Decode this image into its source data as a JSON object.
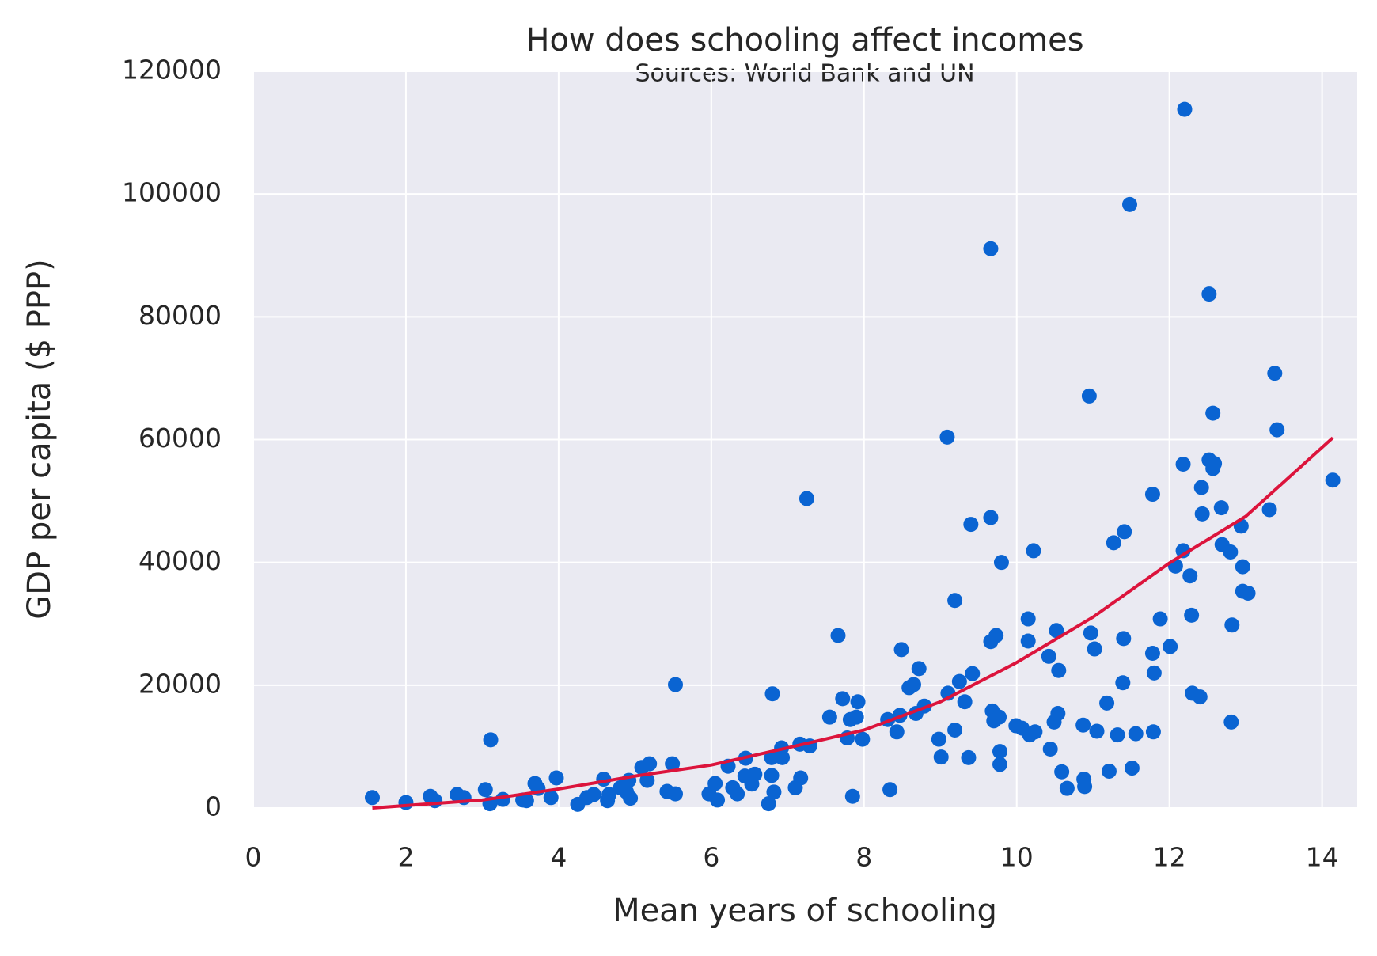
{
  "chart_data": {
    "type": "scatter",
    "title": "How does schooling affect incomes",
    "subtitle": "Sources: World Bank and UN",
    "x_label": "Mean years of schooling",
    "y_label": "GDP per capita ($ PPP)",
    "xlim": [
      0,
      14.46
    ],
    "ylim": [
      0,
      120000
    ],
    "xticks": [
      0,
      2,
      4,
      6,
      8,
      10,
      12,
      14
    ],
    "yticks": [
      0,
      20000,
      40000,
      60000,
      80000,
      100000,
      120000
    ],
    "grid": true,
    "background": "#eaeaf2",
    "points": {
      "color": "#0a64d2",
      "x": [
        1.56,
        2.0,
        2.32,
        2.38,
        2.67,
        2.76,
        3.04,
        3.11,
        3.1,
        3.27,
        3.53,
        3.58,
        3.69,
        3.73,
        3.9,
        3.97,
        4.25,
        4.37,
        4.46,
        4.59,
        4.64,
        4.66,
        4.81,
        4.89,
        4.92,
        4.94,
        5.09,
        5.16,
        5.19,
        5.42,
        5.49,
        5.53,
        5.53,
        5.97,
        6.05,
        6.08,
        6.22,
        6.28,
        6.34,
        6.44,
        6.45,
        6.53,
        6.57,
        6.75,
        6.79,
        6.79,
        6.8,
        6.82,
        6.92,
        6.93,
        7.1,
        7.17,
        7.16,
        7.25,
        7.29,
        7.55,
        7.66,
        7.72,
        7.78,
        7.82,
        7.85,
        7.9,
        7.92,
        7.98,
        8.34,
        8.31,
        8.43,
        8.47,
        8.49,
        8.59,
        8.65,
        8.68,
        8.72,
        8.79,
        8.98,
        9.01,
        9.09,
        9.1,
        9.19,
        9.19,
        9.25,
        9.32,
        9.37,
        9.4,
        9.42,
        9.66,
        9.66,
        9.66,
        9.68,
        9.7,
        9.73,
        9.77,
        9.78,
        9.78,
        9.8,
        9.99,
        10.07,
        10.15,
        10.15,
        10.17,
        10.22,
        10.24,
        10.42,
        10.44,
        10.49,
        10.52,
        10.54,
        10.55,
        10.59,
        10.66,
        10.87,
        10.88,
        10.89,
        10.95,
        10.97,
        11.02,
        11.05,
        11.18,
        11.21,
        11.27,
        11.32,
        11.39,
        11.4,
        11.41,
        11.48,
        11.51,
        11.56,
        11.78,
        11.78,
        11.79,
        11.8,
        11.88,
        12.01,
        12.08,
        12.18,
        12.18,
        12.2,
        12.27,
        12.29,
        12.3,
        12.4,
        12.42,
        12.43,
        12.52,
        12.52,
        12.57,
        12.57,
        12.59,
        12.68,
        12.69,
        12.8,
        12.82,
        12.81,
        12.94,
        12.96,
        12.96,
        13.03,
        13.31,
        13.38,
        13.41,
        14.14
      ],
      "y": [
        1700,
        900,
        1900,
        1200,
        2200,
        1700,
        3000,
        11100,
        700,
        1400,
        1300,
        1200,
        4000,
        3200,
        1700,
        4900,
        600,
        1700,
        2200,
        4700,
        1200,
        2200,
        3300,
        2600,
        4500,
        1600,
        6600,
        4500,
        7200,
        2700,
        7200,
        20100,
        2300,
        2300,
        4000,
        1300,
        6800,
        3300,
        2300,
        5200,
        8100,
        3900,
        5500,
        700,
        5300,
        8200,
        18600,
        2600,
        9800,
        8200,
        3300,
        4900,
        10400,
        50400,
        10100,
        14800,
        28100,
        17800,
        11400,
        14400,
        1900,
        14800,
        17300,
        11200,
        3000,
        14400,
        12400,
        15100,
        25800,
        19600,
        20100,
        15400,
        22700,
        16600,
        11200,
        8300,
        60400,
        18700,
        33800,
        12700,
        20600,
        17300,
        8200,
        46200,
        21900,
        91100,
        47300,
        27100,
        15800,
        14200,
        28100,
        14800,
        9200,
        7100,
        40000,
        13400,
        13000,
        30800,
        27200,
        11900,
        41900,
        12400,
        24700,
        9600,
        14000,
        28900,
        15400,
        22400,
        5900,
        3200,
        13500,
        4700,
        3500,
        67100,
        28500,
        25900,
        12500,
        17100,
        6000,
        43200,
        11900,
        20400,
        27600,
        45000,
        98300,
        6500,
        12100,
        51100,
        25200,
        12400,
        22000,
        30800,
        26300,
        39400,
        56000,
        41900,
        113800,
        37800,
        31400,
        18700,
        18100,
        52200,
        47900,
        83700,
        56700,
        64300,
        55300,
        56100,
        48900,
        42900,
        41700,
        29800,
        14000,
        45900,
        39300,
        35300,
        35000,
        48600,
        70800,
        61600,
        53400
      ]
    },
    "fit": {
      "color": "#dc143c",
      "x": [
        1.56,
        2,
        3,
        4,
        5,
        6,
        7,
        8,
        9,
        10,
        11,
        12,
        13,
        14.14
      ],
      "y": [
        0,
        400,
        1300,
        3100,
        5200,
        7000,
        9800,
        12700,
        17300,
        23700,
        31100,
        39900,
        47500,
        60300
      ]
    }
  }
}
